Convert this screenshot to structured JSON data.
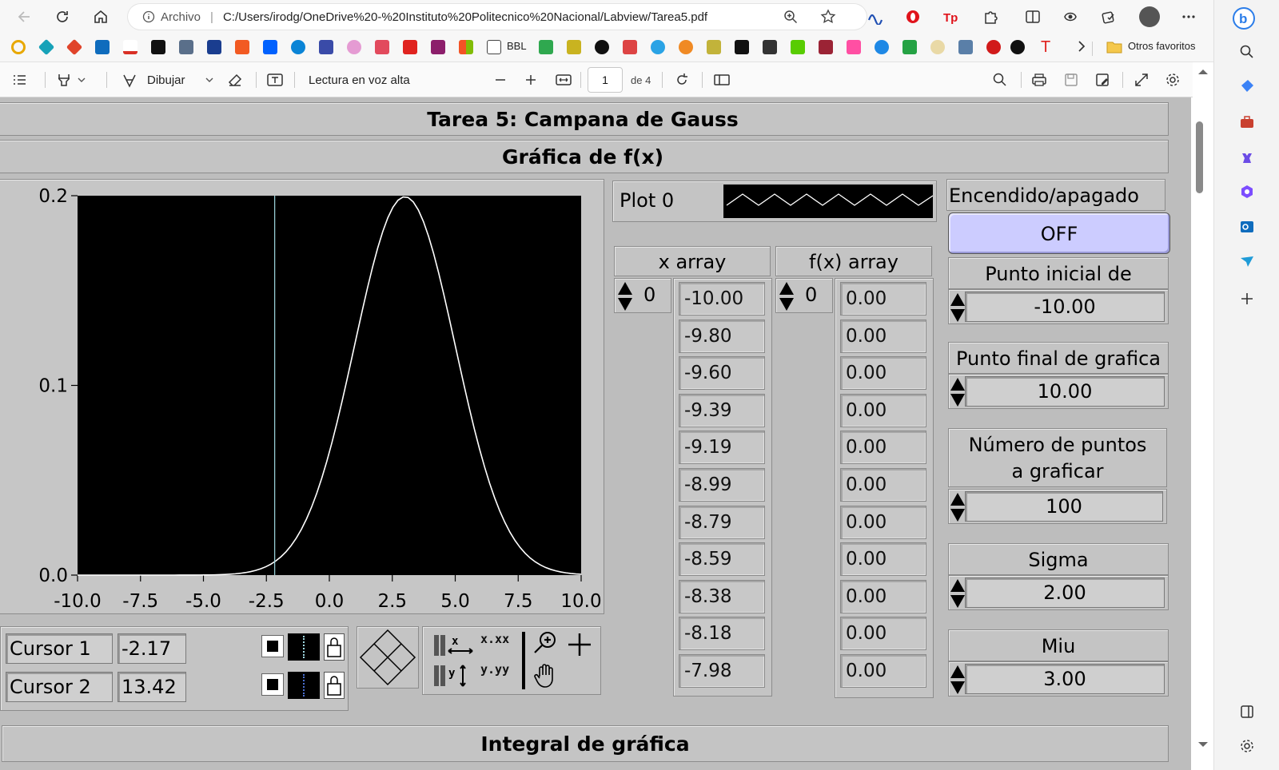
{
  "browser": {
    "url_info": "Archivo",
    "url": "C:/Users/irodg/OneDrive%20-%20Instituto%20Politecnico%20Nacional/Labview/Tarea5.pdf",
    "favorites_label": "Otros favoritos",
    "bbl_label": "BBL"
  },
  "pdf_toolbar": {
    "draw_label": "Dibujar",
    "read_aloud_label": "Lectura en voz alta",
    "page_current": "1",
    "page_total": "de 4"
  },
  "doc": {
    "title": "Tarea 5: Campana de Gauss",
    "graph_title": "Gráfica de f(x)",
    "bottom_title": "Integral de gráfica",
    "plot_legend": "Plot 0",
    "x_array_label": "x array",
    "fx_array_label": "f(x) array",
    "x_array_index": "0",
    "fx_array_index": "0",
    "x_array": [
      "-10.00",
      "-9.80",
      "-9.60",
      "-9.39",
      "-9.19",
      "-8.99",
      "-8.79",
      "-8.59",
      "-8.38",
      "-8.18",
      "-7.98"
    ],
    "fx_array": [
      "0.00",
      "0.00",
      "0.00",
      "0.00",
      "0.00",
      "0.00",
      "0.00",
      "0.00",
      "0.00",
      "0.00",
      "0.00"
    ],
    "toggle_label": "Encendido/apagado",
    "toggle_value": "OFF",
    "start_label": "Punto inicial de grafica",
    "start_value": "-10.00",
    "end_label": "Punto final de grafica",
    "end_value": "10.00",
    "points_label_1": "Número de puntos",
    "points_label_2": "a graficar",
    "points_value": "100",
    "sigma_label": "Sigma",
    "sigma_value": "2.00",
    "miu_label": "Miu",
    "miu_value": "3.00",
    "cursors": [
      {
        "name": "Cursor 1",
        "value": "-2.17"
      },
      {
        "name": "Cursor 2",
        "value": "13.42"
      }
    ],
    "palette_x_fmt": "x.xx",
    "palette_y_fmt": "y.yy"
  },
  "chart_data": {
    "type": "line",
    "title": "",
    "xlabel": "",
    "ylabel": "",
    "xlim": [
      -10,
      10
    ],
    "ylim": [
      0,
      0.2
    ],
    "xticks": [
      "-10.0",
      "-7.5",
      "-5.0",
      "-2.5",
      "0.0",
      "2.5",
      "5.0",
      "7.5",
      "10.0"
    ],
    "yticks": [
      "0.0",
      "0.1",
      "0.2"
    ],
    "series": [
      {
        "function": "normal pdf",
        "mu": 3.0,
        "sigma": 2.0,
        "x_start": -10,
        "x_end": 10,
        "n_points": 100,
        "color": "#ffffff"
      }
    ],
    "cursor_x": -2.17,
    "background": "#000000",
    "grid": false
  },
  "colors": {
    "panel": "#bdbdbd",
    "toggle_bg": "#ccccff",
    "plot_bg": "#000000",
    "cursor_line": "#9fd8e0"
  }
}
